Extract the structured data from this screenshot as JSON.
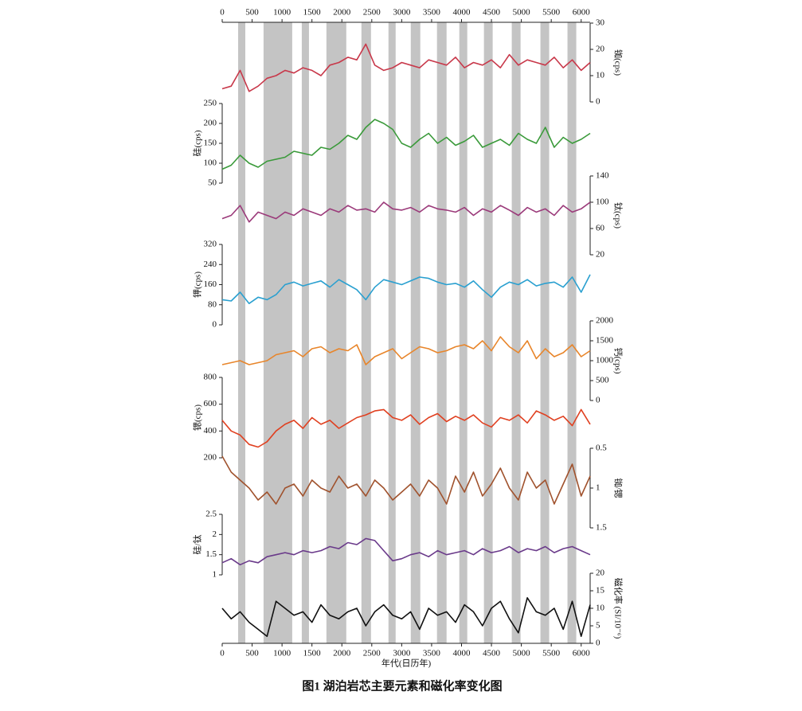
{
  "chart_data": {
    "type": "line",
    "title": "图1 湖泊岩芯主要元素和磁化率变化图",
    "xlabel": "年代(日历年)",
    "xlim": [
      0,
      6150
    ],
    "xticks": [
      0,
      500,
      1000,
      1500,
      2000,
      2500,
      3000,
      3500,
      4000,
      4500,
      5000,
      5500,
      6000
    ],
    "shade_color": "#c4c4c4",
    "shaded_intervals": [
      [
        266,
        386
      ],
      [
        691,
        1170
      ],
      [
        1330,
        1450
      ],
      [
        1742,
        2074
      ],
      [
        2327,
        2487
      ],
      [
        2779,
        2899
      ],
      [
        3152,
        3311
      ],
      [
        3590,
        3750
      ],
      [
        3963,
        4096
      ],
      [
        4375,
        4521
      ],
      [
        4840,
        4987
      ],
      [
        5319,
        5465
      ],
      [
        5771,
        5918
      ]
    ],
    "x": [
      0,
      150,
      300,
      450,
      600,
      750,
      900,
      1050,
      1200,
      1350,
      1500,
      1650,
      1800,
      1950,
      2100,
      2250,
      2400,
      2550,
      2700,
      2850,
      3000,
      3150,
      3300,
      3450,
      3600,
      3750,
      3900,
      4050,
      4200,
      4350,
      4500,
      4650,
      4800,
      4950,
      5100,
      5250,
      5400,
      5550,
      5700,
      5850,
      6000,
      6150
    ],
    "series": [
      {
        "name": "铷(cps)",
        "color": "#c8384a",
        "axis": "right",
        "ylim": [
          0,
          30
        ],
        "yticks": [
          0,
          10,
          20,
          30
        ],
        "values": [
          5,
          6,
          12,
          4,
          6,
          9,
          10,
          12,
          11,
          13,
          12,
          10,
          14,
          15,
          17,
          16,
          22,
          14,
          12,
          13,
          15,
          14,
          13,
          16,
          15,
          14,
          17,
          13,
          15,
          14,
          16,
          13,
          18,
          14,
          16,
          15,
          14,
          17,
          13,
          16,
          12,
          15
        ]
      },
      {
        "name": "硅(cps)",
        "color": "#3a9a3a",
        "axis": "left",
        "ylim": [
          50,
          250
        ],
        "yticks": [
          50,
          100,
          150,
          200,
          250
        ],
        "values": [
          85,
          95,
          120,
          100,
          90,
          105,
          110,
          115,
          130,
          125,
          120,
          140,
          135,
          150,
          170,
          160,
          190,
          210,
          200,
          185,
          150,
          140,
          160,
          175,
          150,
          165,
          145,
          155,
          170,
          140,
          150,
          160,
          145,
          175,
          160,
          150,
          190,
          140,
          165,
          150,
          160,
          175
        ]
      },
      {
        "name": "钛(cps)",
        "color": "#9b3a7a",
        "axis": "right",
        "ylim": [
          20,
          140
        ],
        "yticks": [
          20,
          60,
          100,
          140
        ],
        "values": [
          75,
          80,
          95,
          70,
          85,
          80,
          75,
          85,
          80,
          90,
          85,
          80,
          90,
          85,
          95,
          88,
          90,
          85,
          100,
          90,
          88,
          92,
          85,
          95,
          90,
          88,
          85,
          92,
          80,
          90,
          85,
          95,
          88,
          80,
          92,
          85,
          90,
          80,
          95,
          85,
          90,
          100
        ]
      },
      {
        "name": "钾(cps)",
        "color": "#2aa0d0",
        "axis": "left",
        "ylim": [
          0,
          320
        ],
        "yticks": [
          0,
          80,
          160,
          240,
          320
        ],
        "values": [
          100,
          95,
          130,
          85,
          110,
          100,
          120,
          160,
          170,
          155,
          165,
          175,
          150,
          180,
          160,
          140,
          100,
          150,
          180,
          170,
          160,
          175,
          190,
          185,
          170,
          160,
          165,
          150,
          175,
          140,
          110,
          150,
          170,
          160,
          180,
          155,
          165,
          170,
          150,
          190,
          130,
          200
        ]
      },
      {
        "name": "钙(cps)",
        "color": "#e8852a",
        "axis": "right",
        "ylim": [
          0,
          2000
        ],
        "yticks": [
          0,
          500,
          1000,
          1500,
          2000
        ],
        "values": [
          900,
          950,
          1000,
          900,
          950,
          1000,
          1150,
          1200,
          1250,
          1100,
          1300,
          1350,
          1200,
          1300,
          1250,
          1400,
          900,
          1100,
          1200,
          1300,
          1050,
          1200,
          1350,
          1300,
          1200,
          1250,
          1350,
          1400,
          1300,
          1500,
          1250,
          1600,
          1350,
          1200,
          1500,
          1050,
          1300,
          1100,
          1200,
          1400,
          1100,
          1250
        ]
      },
      {
        "name": "锶(cps)",
        "color": "#e04020",
        "axis": "left",
        "ylim": [
          200,
          800
        ],
        "yticks": [
          200,
          400,
          600,
          800
        ],
        "values": [
          480,
          400,
          370,
          300,
          280,
          320,
          400,
          450,
          480,
          420,
          500,
          450,
          480,
          420,
          460,
          500,
          520,
          550,
          560,
          500,
          480,
          520,
          450,
          500,
          530,
          470,
          510,
          480,
          520,
          460,
          430,
          500,
          480,
          520,
          460,
          550,
          520,
          480,
          510,
          440,
          560,
          450
        ]
      },
      {
        "name": "铷/锶",
        "color": "#a0522d",
        "axis": "right",
        "inverted": true,
        "ylim": [
          0.5,
          1.5
        ],
        "yticks": [
          0.5,
          1,
          1.5
        ],
        "values": [
          0.6,
          0.8,
          0.9,
          1.0,
          1.15,
          1.05,
          1.2,
          1.0,
          0.95,
          1.1,
          0.9,
          1.0,
          1.05,
          0.85,
          1.0,
          0.95,
          1.1,
          0.9,
          1.0,
          1.15,
          1.05,
          0.95,
          1.1,
          0.9,
          1.0,
          1.2,
          0.85,
          1.05,
          0.8,
          1.1,
          0.95,
          0.75,
          1.0,
          1.15,
          0.8,
          1.0,
          0.9,
          1.2,
          0.95,
          0.7,
          1.1,
          0.85
        ]
      },
      {
        "name": "硅/钛",
        "color": "#6a3a8a",
        "axis": "left",
        "ylim": [
          1,
          2.5
        ],
        "yticks": [
          1,
          1.5,
          2,
          2.5
        ],
        "values": [
          1.3,
          1.4,
          1.25,
          1.35,
          1.3,
          1.45,
          1.5,
          1.55,
          1.5,
          1.6,
          1.55,
          1.6,
          1.7,
          1.65,
          1.8,
          1.75,
          1.9,
          1.85,
          1.6,
          1.35,
          1.4,
          1.5,
          1.55,
          1.45,
          1.6,
          1.5,
          1.55,
          1.6,
          1.5,
          1.65,
          1.55,
          1.6,
          1.7,
          1.55,
          1.65,
          1.6,
          1.7,
          1.55,
          1.65,
          1.7,
          1.6,
          1.5
        ]
      },
      {
        "name": "磁化率 (SI/10⁻⁶)",
        "color": "#111111",
        "axis": "right",
        "ylim": [
          0,
          20
        ],
        "yticks": [
          0,
          5,
          10,
          15,
          20
        ],
        "values": [
          10,
          7,
          9,
          6,
          4,
          2,
          12,
          10,
          8,
          9,
          6,
          11,
          8,
          7,
          9,
          10,
          5,
          9,
          11,
          8,
          7,
          9,
          4,
          10,
          8,
          9,
          6,
          11,
          9,
          5,
          10,
          12,
          7,
          3,
          13,
          9,
          8,
          10,
          4,
          12,
          2,
          11
        ]
      }
    ]
  }
}
